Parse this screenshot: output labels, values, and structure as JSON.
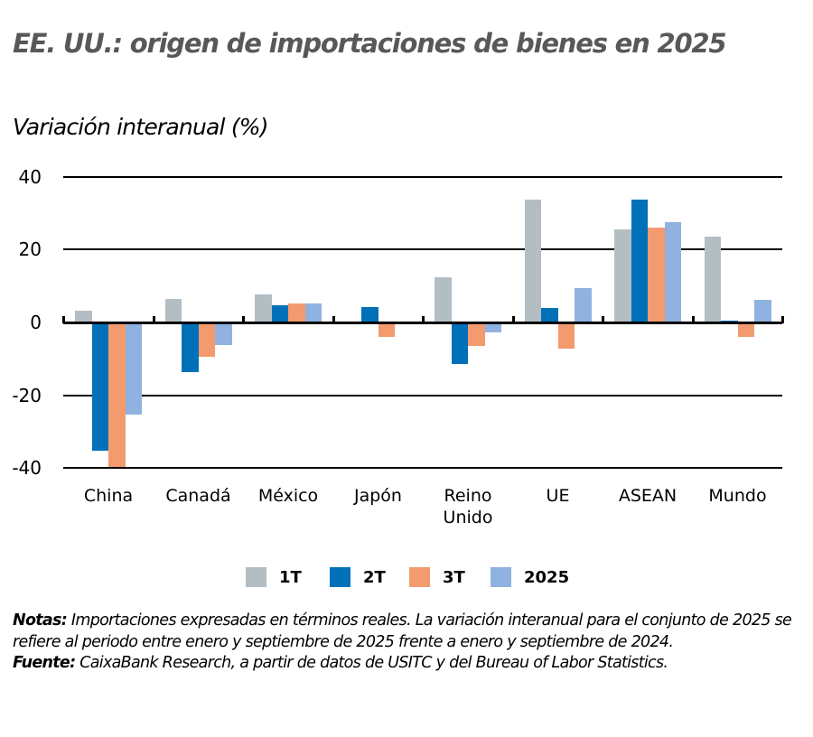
{
  "title": "EE. UU.: origen de importaciones de bienes en 2025",
  "subtitle": "Variación interanual (%)",
  "notes": {
    "notes_label": "Notas:",
    "notes_text": " Importaciones expresadas en términos reales. La variación interanual para el conjunto de 2025 se refiere al periodo entre enero y septiembre de 2025 frente a enero y septiembre de 2024.",
    "source_label": "Fuente:",
    "source_text": " CaixaBank Research, a partir de datos de USITC y del Bureau of Labor Statistics."
  },
  "colors": {
    "1T": "#B3BEC3",
    "2T": "#0070B8",
    "3T": "#F39A6E",
    "2025": "#8FB2E0",
    "title": "#58585A"
  },
  "legend": [
    {
      "label": "1T",
      "color": "#B3BEC3"
    },
    {
      "label": "2T",
      "color": "#0070B8"
    },
    {
      "label": "3T",
      "color": "#F39A6E"
    },
    {
      "label": "2025",
      "color": "#8FB2E0"
    }
  ],
  "chart_data": {
    "type": "bar",
    "title": "EE. UU.: origen de importaciones de bienes en 2025",
    "subtitle": "Variación interanual (%)",
    "xlabel": "",
    "ylabel": "Variación interanual (%)",
    "ylim": [
      -40,
      40
    ],
    "yticks": [
      40,
      20,
      0,
      -20,
      -40
    ],
    "grid": true,
    "legend_position": "bottom",
    "categories": [
      "China",
      "Canadá",
      "México",
      "Japón",
      "Reino Unido",
      "UE",
      "ASEAN",
      "Mundo"
    ],
    "series": [
      {
        "name": "1T",
        "color": "#B3BEC3",
        "values": [
          3.2,
          6.4,
          7.7,
          0.3,
          12.4,
          33.7,
          25.5,
          23.5
        ]
      },
      {
        "name": "2T",
        "color": "#0070B8",
        "values": [
          -35.0,
          -13.4,
          4.7,
          4.2,
          -11.2,
          4.0,
          33.7,
          0.5
        ]
      },
      {
        "name": "3T",
        "color": "#F39A6E",
        "values": [
          -39.5,
          -9.2,
          5.2,
          -3.7,
          -6.2,
          -7.0,
          26.0,
          -3.8
        ]
      },
      {
        "name": "2025",
        "color": "#8FB2E0",
        "values": [
          -25.0,
          -6.0,
          5.2,
          -0.3,
          -2.5,
          9.4,
          27.5,
          6.2
        ]
      }
    ]
  }
}
